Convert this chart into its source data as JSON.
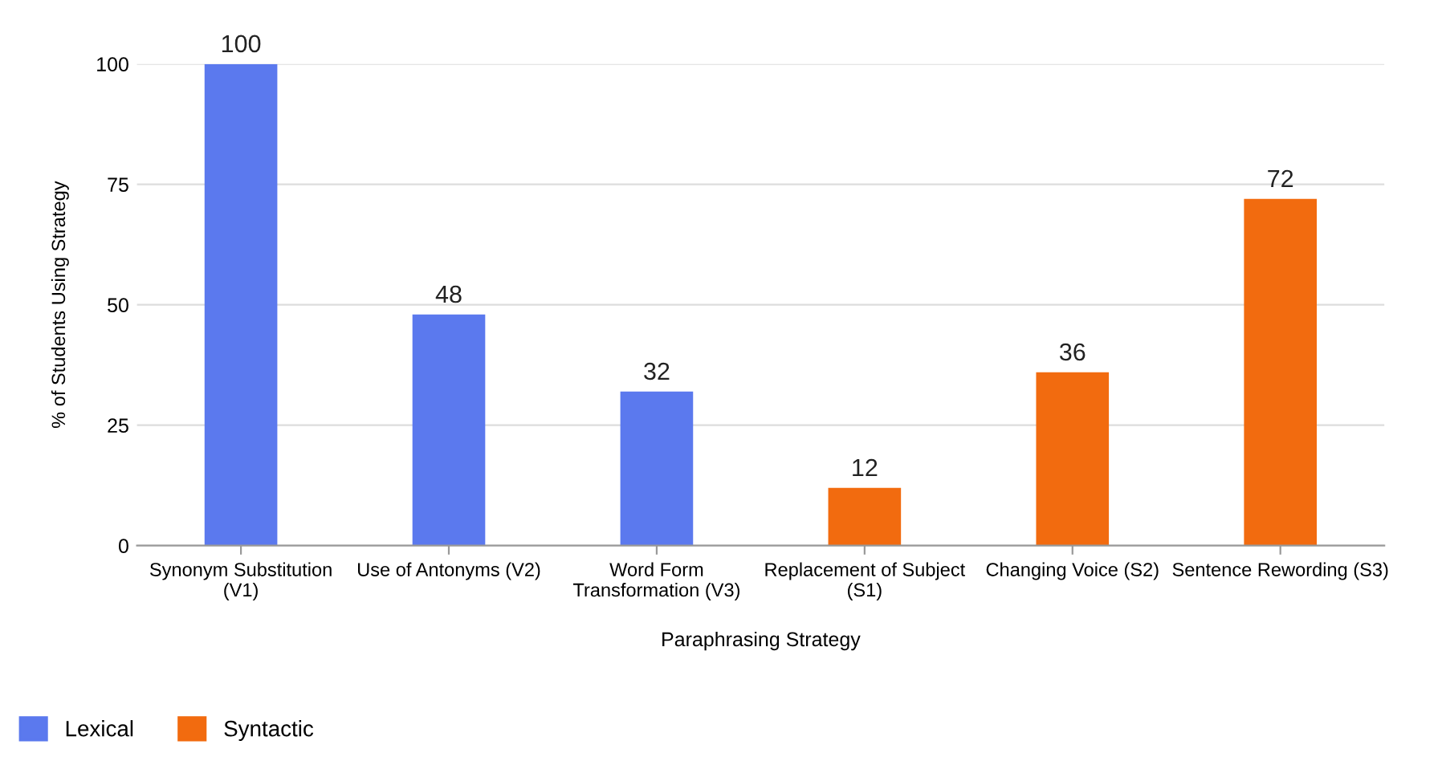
{
  "chart_data": {
    "type": "bar",
    "xlabel": "Paraphrasing Strategy",
    "ylabel": "% of Students Using Strategy",
    "categories": [
      "Synonym Substitution\n(V1)",
      "Use of Antonyms (V2)",
      "Word Form\nTransformation (V3)",
      "Replacement of Subject\n(S1)",
      "Changing Voice (S2)",
      "Sentence Rewording (S3)"
    ],
    "series": [
      {
        "name": "Lexical",
        "color": "#5b79ee",
        "values": [
          100,
          48,
          32,
          null,
          null,
          null
        ]
      },
      {
        "name": "Syntactic",
        "color": "#f26b0f",
        "values": [
          null,
          null,
          null,
          12,
          36,
          72
        ]
      }
    ],
    "ylim": [
      0,
      100
    ],
    "yticks": [
      0,
      25,
      50,
      75,
      100
    ],
    "grid": "y",
    "data_labels": true,
    "legend": "bottom left"
  }
}
